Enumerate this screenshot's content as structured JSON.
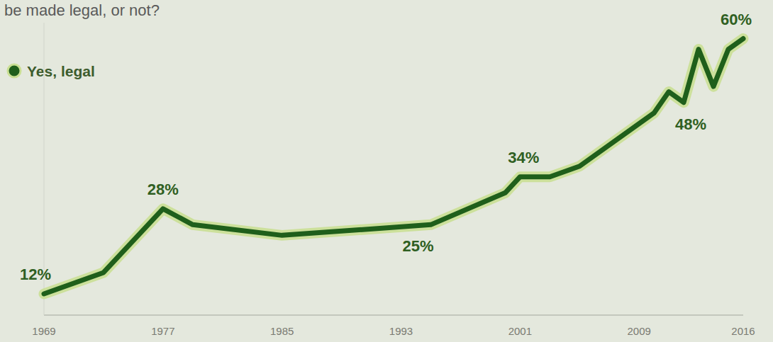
{
  "chart_data": {
    "type": "line",
    "title": "be made legal, or not?",
    "x": [
      1969,
      1972,
      1973,
      1977,
      1979,
      1985,
      1995,
      2000,
      2001,
      2003,
      2005,
      2009,
      2010,
      2011,
      2012,
      2013,
      2014,
      2015,
      2016
    ],
    "series": [
      {
        "name": "Yes, legal",
        "color": "#1f5f1b",
        "values": [
          12,
          15,
          16,
          28,
          25,
          23,
          25,
          31,
          34,
          34,
          36,
          44,
          46,
          50,
          48,
          58,
          51,
          58,
          60
        ],
        "value_labels": [
          "12%",
          null,
          null,
          "28%",
          null,
          null,
          "25%",
          null,
          "34%",
          null,
          null,
          null,
          null,
          null,
          "48%",
          null,
          null,
          null,
          "60%"
        ]
      }
    ],
    "xlim": [
      1969,
      2016
    ],
    "xticks": [
      1969,
      1977,
      1985,
      1993,
      2001,
      2009,
      2016
    ],
    "ylim": [
      8,
      63
    ],
    "yticks": [],
    "grid": false,
    "legend": "top-left",
    "data_labels": true,
    "tick_labels": "x",
    "marker": "none",
    "line_style": "solid"
  }
}
